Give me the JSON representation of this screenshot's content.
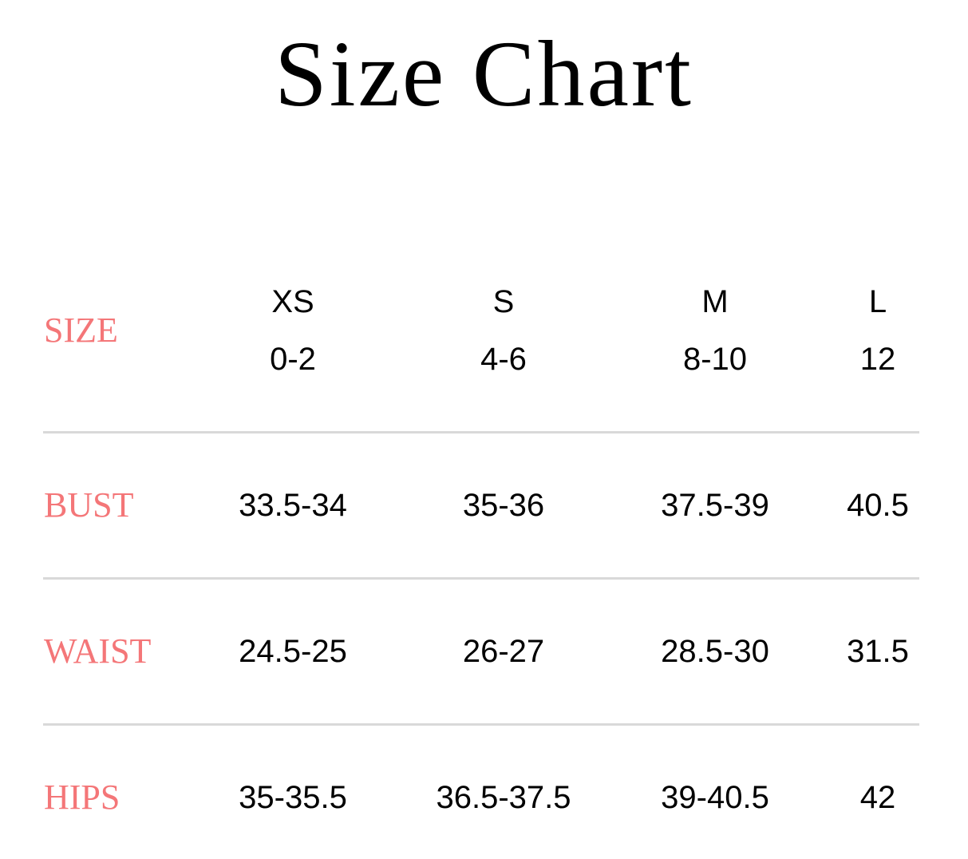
{
  "title": "Size Chart",
  "accent_color": "#f47678",
  "table": {
    "header_label": "SIZE",
    "sizes": [
      {
        "letter": "XS",
        "number": "0-2"
      },
      {
        "letter": "S",
        "number": "4-6"
      },
      {
        "letter": "M",
        "number": "8-10"
      },
      {
        "letter": "L",
        "number": "12"
      }
    ],
    "rows": [
      {
        "label": "BUST",
        "values": [
          "33.5-34",
          "35-36",
          "37.5-39",
          "40.5"
        ]
      },
      {
        "label": "WAIST",
        "values": [
          "24.5-25",
          "26-27",
          "28.5-30",
          "31.5"
        ]
      },
      {
        "label": "HIPS",
        "values": [
          "35-35.5",
          "36.5-37.5",
          "39-40.5",
          "42"
        ]
      }
    ]
  }
}
